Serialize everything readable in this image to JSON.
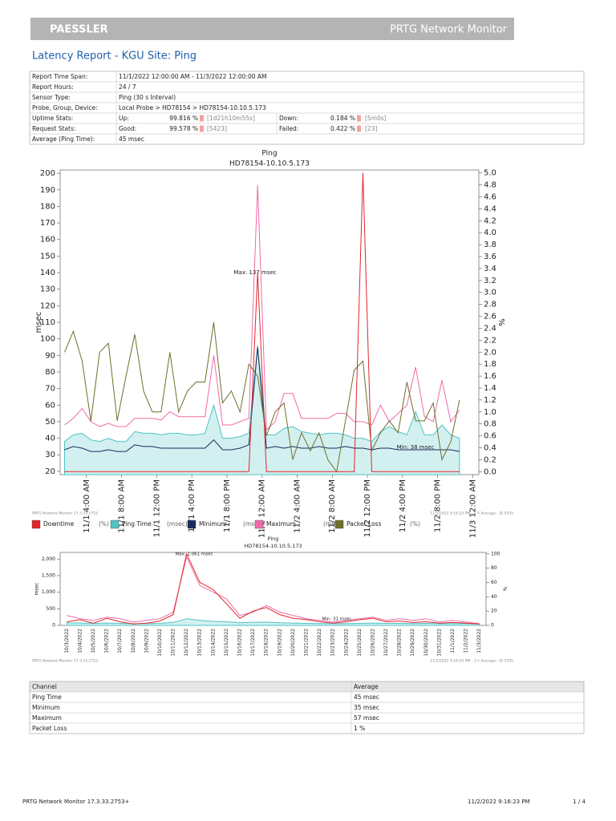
{
  "header": {
    "brand": "PAESSLER",
    "product": "PRTG Network Monitor"
  },
  "title": "Latency Report - KGU Site: Ping",
  "info_table": {
    "rows": [
      [
        "Report Time Span:",
        "11/1/2022 12:00:00 AM - 11/3/2022 12:00:00 AM"
      ],
      [
        "Report Hours:",
        "24 / 7"
      ],
      [
        "Sensor Type:",
        "Ping (30 s Interval)"
      ],
      [
        "Probe, Group, Device:",
        "Local Probe > HD78154 > HD78154-10.10.5.173"
      ],
      [
        "Uptime Stats:",
        "Up:",
        "99.816 %",
        "[1d21h10m55s]",
        "Down:",
        "0.184 %",
        "[5m0s]"
      ],
      [
        "Request Stats:",
        "Good:",
        "99.578 %",
        "[5423]",
        "Failed:",
        "0.422 %",
        "[23]"
      ],
      [
        "Average (Ping Time):",
        "45 msec"
      ]
    ]
  },
  "chart_data": [
    {
      "type": "line",
      "title": "Ping",
      "subtitle": "HD78154-10.10.5.173",
      "ylabel": "msec",
      "y2label": "%",
      "x": [
        1.5,
        2.5,
        3.5,
        4.5,
        5.5,
        6.5,
        7.5,
        8.5,
        9.5,
        10.5,
        11.5,
        12.5,
        13.5,
        14.5,
        15.5,
        16.5,
        17.5,
        18.5,
        19.5,
        20.5,
        21.5,
        22.5,
        23.5,
        24.5,
        25.5,
        26.5,
        27.5,
        28.5,
        29.5,
        30.5,
        31.5,
        32.5,
        33.5,
        34.5,
        35.5,
        36.5,
        37.5,
        38.5,
        39.5,
        40.5,
        41.5,
        42.5,
        43.5,
        44.5,
        45.5,
        46.5
      ],
      "xlim": [
        1,
        48.7
      ],
      "xticks": [
        {
          "value": 4,
          "label": "11/1 4:00 AM"
        },
        {
          "value": 8,
          "label": "11/1 8:00 AM"
        },
        {
          "value": 12,
          "label": "11/1 12:00 PM"
        },
        {
          "value": 16,
          "label": "11/1 4:00 PM"
        },
        {
          "value": 20,
          "label": "11/1 8:00 PM"
        },
        {
          "value": 24,
          "label": "11/2 12:00 AM"
        },
        {
          "value": 28,
          "label": "11/2 4:00 AM"
        },
        {
          "value": 32,
          "label": "11/2 8:00 AM"
        },
        {
          "value": 36,
          "label": "11/2 12:00 PM"
        },
        {
          "value": 40,
          "label": "11/2 4:00 PM"
        },
        {
          "value": 44,
          "label": "11/2 8:00 PM"
        },
        {
          "value": 48,
          "label": "11/3 12:00 AM"
        }
      ],
      "ylim": [
        18,
        202
      ],
      "yticks": [
        20,
        30,
        40,
        50,
        60,
        70,
        80,
        90,
        100,
        110,
        120,
        130,
        140,
        150,
        160,
        170,
        180,
        190,
        200
      ],
      "y2lim": [
        -0.05,
        5.05
      ],
      "y2ticks": [
        {
          "value": 0,
          "label": "0.0"
        },
        0.2,
        0.4,
        0.6,
        0.8,
        {
          "value": 1,
          "label": "1.0"
        },
        1.2,
        1.4,
        1.6,
        1.8,
        {
          "value": 2,
          "label": "2.0"
        },
        2.2,
        2.4,
        2.6,
        2.8,
        {
          "value": 3,
          "label": "3.0"
        },
        3.2,
        3.4,
        3.6,
        3.8,
        {
          "value": 4,
          "label": "4.0"
        },
        4.2,
        4.4,
        4.6,
        4.8,
        {
          "value": 5,
          "label": "5.0"
        }
      ],
      "grid": false,
      "annotations": [
        "Max: 137 msec",
        "Min: 38 msec"
      ],
      "source": "PRTG Network Monitor 17.3.33.2753",
      "note": "11/2/2022 9:16:23 PM - 1 h Average - ID 5195",
      "series": [
        {
          "name": "Ping Time",
          "unit": "(msec)",
          "color": "#4fc3c3",
          "style": "area",
          "values": [
            38,
            42,
            43,
            39,
            38,
            40,
            38,
            38,
            44,
            43,
            43,
            42,
            43,
            43,
            42,
            42,
            43,
            60,
            40,
            40,
            41,
            43,
            96,
            42,
            42,
            46,
            47,
            44,
            43,
            42,
            43,
            43,
            42,
            40,
            40,
            38,
            44,
            47,
            44,
            42,
            56,
            42,
            42,
            48,
            42,
            40
          ]
        },
        {
          "name": "Minimum",
          "unit": "(msec)",
          "color": "#1b2a5e",
          "values": [
            33,
            35,
            34,
            32,
            32,
            33,
            32,
            32,
            36,
            35,
            35,
            34,
            34,
            34,
            34,
            34,
            34,
            39,
            33,
            33,
            34,
            36,
            95,
            34,
            35,
            34,
            35,
            34,
            34,
            35,
            34,
            34,
            35,
            34,
            34,
            33,
            34,
            34,
            33,
            33,
            33,
            33,
            33,
            33,
            33,
            32
          ]
        },
        {
          "name": "Maximum",
          "unit": "(msec)",
          "color": "#f06aa8",
          "values": [
            48,
            52,
            58,
            50,
            47,
            49,
            47,
            47,
            52,
            52,
            52,
            51,
            56,
            53,
            53,
            53,
            53,
            90,
            48,
            48,
            50,
            52,
            193,
            45,
            50,
            67,
            67,
            52,
            52,
            52,
            52,
            55,
            55,
            50,
            50,
            48,
            60,
            50,
            55,
            60,
            83,
            53,
            50,
            75,
            50,
            57
          ]
        },
        {
          "name": "Packet Loss",
          "unit": "(%)",
          "color": "#6e6e2c",
          "axis": "y2",
          "values": [
            2.0,
            2.35,
            1.85,
            0.85,
            2.0,
            2.15,
            0.85,
            1.6,
            2.3,
            1.35,
            1.0,
            1.0,
            2.0,
            1.0,
            1.35,
            1.5,
            1.5,
            2.5,
            1.15,
            1.35,
            1.0,
            1.8,
            1.6,
            0.6,
            1.0,
            1.15,
            0.2,
            0.65,
            0.35,
            0.65,
            0.2,
            0,
            0.85,
            1.7,
            1.85,
            0.35,
            0.65,
            0.85,
            0.65,
            1.5,
            0.85,
            0.85,
            1.15,
            0.2,
            0.5,
            1.2
          ]
        },
        {
          "name": "Downtime",
          "unit": "(%)",
          "color": "#e0262b",
          "axis": "y2",
          "values": [
            0,
            0,
            0,
            0,
            0,
            0,
            0,
            0,
            0,
            0,
            0,
            0,
            0,
            0,
            0,
            0,
            0,
            0,
            0,
            0,
            0,
            0,
            3.33,
            0,
            0,
            0,
            0,
            0,
            0,
            0,
            0,
            0,
            0,
            0,
            5.0,
            0,
            0,
            0,
            0,
            0,
            0,
            0,
            0,
            0,
            0,
            0
          ]
        }
      ],
      "legend_order": [
        4,
        0,
        1,
        2,
        3
      ]
    },
    {
      "type": "line",
      "title": "Ping",
      "subtitle": "HD78154-10.10.5.173",
      "ylabel": "msec",
      "y2label": "%",
      "categories": [
        "10/3/2022",
        "10/4/2022",
        "10/5/2022",
        "10/6/2022",
        "10/7/2022",
        "10/8/2022",
        "10/9/2022",
        "10/10/2022",
        "10/11/2022",
        "10/12/2022",
        "10/13/2022",
        "10/14/2022",
        "10/15/2022",
        "10/16/2022",
        "10/17/2022",
        "10/18/2022",
        "10/19/2022",
        "10/20/2022",
        "10/21/2022",
        "10/22/2022",
        "10/23/2022",
        "10/24/2022",
        "10/25/2022",
        "10/26/2022",
        "10/27/2022",
        "10/28/2022",
        "10/29/2022",
        "10/30/2022",
        "10/31/2022",
        "11/1/2022",
        "11/2/2022",
        "11/3/2022"
      ],
      "ylim": [
        0,
        2200
      ],
      "yticks": [
        0,
        500,
        {
          "value": 1000,
          "label": "1,000"
        },
        {
          "value": 1500,
          "label": "1,500"
        },
        {
          "value": 2000,
          "label": "2,000"
        }
      ],
      "y2lim": [
        0,
        102
      ],
      "y2ticks": [
        0,
        20,
        40,
        60,
        80,
        100
      ],
      "grid": false,
      "annotations": [
        "Max: 2,061 msec",
        "Min: 31 msec"
      ],
      "source": "PRTG Network Monitor 17.3.33.2753",
      "note": "11/2/2022 9:16:24 PM - 1 h Average - ID 5195",
      "series": [
        {
          "color": "#4fc3c3",
          "style": "area",
          "values": [
            80,
            70,
            60,
            70,
            60,
            50,
            55,
            60,
            90,
            200,
            150,
            120,
            110,
            80,
            90,
            100,
            80,
            70,
            60,
            55,
            50,
            55,
            60,
            70,
            60,
            60,
            55,
            60,
            50,
            55,
            50,
            45
          ]
        },
        {
          "color": "#f06aa8",
          "values": [
            300,
            200,
            150,
            250,
            200,
            100,
            150,
            200,
            400,
            2061,
            1200,
            1000,
            800,
            300,
            400,
            600,
            400,
            300,
            200,
            150,
            100,
            150,
            200,
            250,
            150,
            200,
            150,
            200,
            100,
            150,
            100,
            50
          ]
        },
        {
          "color": "#e0262b",
          "axis": "y2",
          "values": [
            5,
            8,
            3,
            10,
            5,
            2,
            3,
            6,
            15,
            100,
            60,
            50,
            30,
            10,
            20,
            25,
            15,
            10,
            8,
            5,
            3,
            5,
            8,
            10,
            5,
            6,
            4,
            5,
            3,
            4,
            3,
            2
          ]
        }
      ]
    }
  ],
  "channel_table": {
    "header": [
      "Channel",
      "Average"
    ],
    "rows": [
      [
        "Ping Time",
        "45 msec"
      ],
      [
        "Minimum",
        "35 msec"
      ],
      [
        "Maximum",
        "57 msec"
      ],
      [
        "Packet Loss",
        "1 %"
      ]
    ]
  },
  "footer": {
    "left": "PRTG Network Monitor 17.3.33.2753+",
    "center": "11/2/2022 9:16:23 PM",
    "right": "1 / 4"
  }
}
